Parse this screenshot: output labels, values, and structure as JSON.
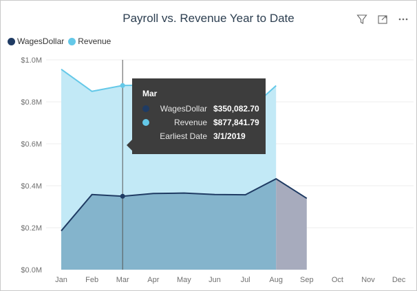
{
  "visual": {
    "title": "Payroll vs. Revenue Year to Date",
    "header_icons": [
      "filter-icon",
      "focus-mode-icon",
      "more-options-icon"
    ]
  },
  "legend": [
    {
      "name": "WagesDollar",
      "color": "#1f3b63"
    },
    {
      "name": "Revenue",
      "color": "#64c8e8"
    }
  ],
  "chart_data": {
    "type": "area",
    "title": "Payroll vs. Revenue Year to Date",
    "categories": [
      "Jan",
      "Feb",
      "Mar",
      "Apr",
      "May",
      "Jun",
      "Jul",
      "Aug",
      "Sep",
      "Oct",
      "Nov",
      "Dec"
    ],
    "series": [
      {
        "name": "Revenue",
        "color": "#64c8e8",
        "fill": "#c2e9f6",
        "values": [
          955000,
          850000,
          877841.79,
          880000,
          860000,
          840000,
          745000,
          877000,
          null,
          null,
          null,
          null
        ]
      },
      {
        "name": "WagesDollar",
        "color": "#1f3b63",
        "fill": "#84b4cc",
        "values": [
          185000,
          358000,
          350082.7,
          363000,
          365000,
          358000,
          357000,
          433000,
          340000,
          null,
          null,
          null
        ]
      }
    ],
    "ylim": [
      0,
      1000000
    ],
    "yticks": [
      0,
      200000,
      400000,
      600000,
      800000,
      1000000
    ],
    "ytick_labels": [
      "$0.0M",
      "$0.2M",
      "$0.4M",
      "$0.6M",
      "$0.8M",
      "$1.0M"
    ],
    "xlabel": "",
    "ylabel": "",
    "grid": true,
    "legend_position": "top-left",
    "highlight_index": 2
  },
  "tooltip": {
    "title": "Mar",
    "rows": [
      {
        "label": "WagesDollar",
        "value": "$350,082.70",
        "color": "#1f3b63"
      },
      {
        "label": "Revenue",
        "value": "$877,841.79",
        "color": "#64c8e8"
      },
      {
        "label": "Earliest Date",
        "value": "3/1/2019",
        "color": ""
      }
    ]
  }
}
